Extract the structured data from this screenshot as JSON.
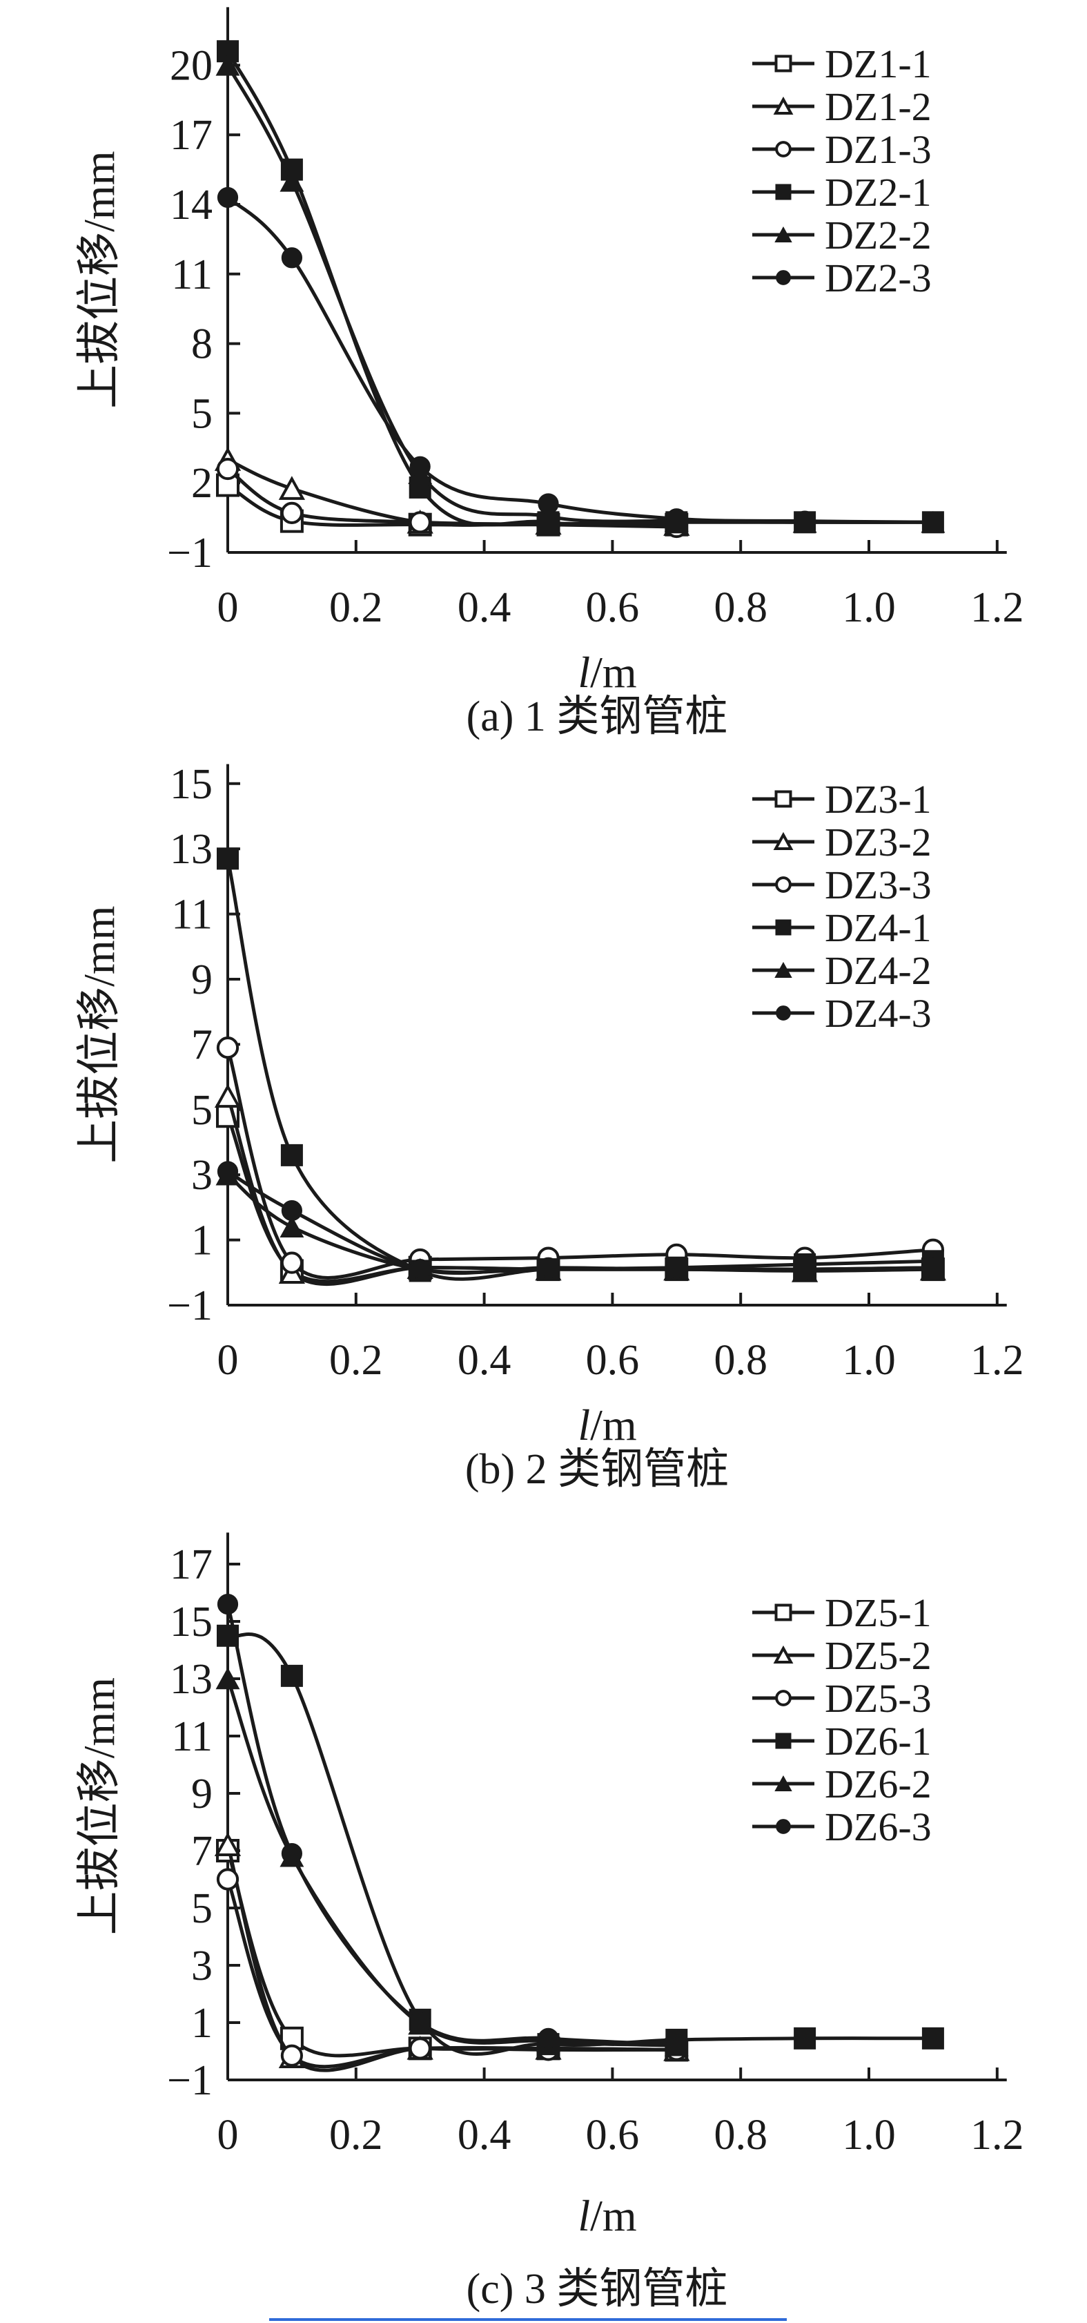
{
  "page": {
    "background": "#ffffff",
    "ink_color": "#1a1a1a",
    "accent_blue": "#2f6bd8"
  },
  "chart_data": [
    {
      "id": "a",
      "type": "line",
      "caption": "(a) 1 类钢管桩",
      "xlabel_italic": "l",
      "xlabel_rest": "/m",
      "ylabel": "上拔位移/mm",
      "xlim": [
        0,
        1.215
      ],
      "ylim": [
        -1,
        22.5
      ],
      "xticks": [
        0,
        0.2,
        0.4,
        0.6,
        0.8,
        1.0,
        1.2
      ],
      "xtick_labels": [
        "0",
        "0.2",
        "0.4",
        "0.6",
        "0.8",
        "1.0",
        "1.2"
      ],
      "yticks": [
        -1,
        2,
        5,
        8,
        11,
        14,
        17,
        20
      ],
      "ytick_labels": [
        "−1",
        "2",
        "5",
        "8",
        "11",
        "14",
        "17",
        "20"
      ],
      "grid": false,
      "legend_position": "upper-right",
      "series": [
        {
          "name": "DZ1-1",
          "marker": "square-open",
          "x": [
            0,
            0.1,
            0.3,
            0.5,
            0.7
          ],
          "y": [
            1.9,
            0.35,
            0.2,
            0.2,
            0.2
          ]
        },
        {
          "name": "DZ1-2",
          "marker": "triangle-open",
          "x": [
            0,
            0.1,
            0.3,
            0.5,
            0.7
          ],
          "y": [
            3.0,
            1.75,
            0.3,
            0.25,
            0.2
          ]
        },
        {
          "name": "DZ1-3",
          "marker": "circle-open",
          "x": [
            0,
            0.1,
            0.3,
            0.5,
            0.7
          ],
          "y": [
            2.6,
            0.7,
            0.3,
            0.2,
            0.1
          ]
        },
        {
          "name": "DZ2-1",
          "marker": "square-filled",
          "x": [
            0,
            0.1,
            0.3,
            0.5,
            0.7,
            0.9,
            1.1
          ],
          "y": [
            20.6,
            15.5,
            1.8,
            0.3,
            0.3,
            0.3,
            0.3
          ]
        },
        {
          "name": "DZ2-2",
          "marker": "triangle-filled",
          "x": [
            0,
            0.1,
            0.3,
            0.5,
            0.7,
            0.9,
            1.1
          ],
          "y": [
            20.0,
            15.0,
            2.4,
            0.55,
            0.35,
            0.3,
            0.3
          ]
        },
        {
          "name": "DZ2-3",
          "marker": "circle-filled",
          "x": [
            0,
            0.1,
            0.3,
            0.5,
            0.7,
            0.9,
            1.1
          ],
          "y": [
            14.3,
            11.7,
            2.7,
            1.1,
            0.45,
            0.35,
            0.3
          ]
        }
      ]
    },
    {
      "id": "b",
      "type": "line",
      "caption": "(b) 2 类钢管桩",
      "xlabel_italic": "l",
      "xlabel_rest": "/m",
      "ylabel": "上拔位移/mm",
      "xlim": [
        0,
        1.215
      ],
      "ylim": [
        -1,
        15.6
      ],
      "xticks": [
        0,
        0.2,
        0.4,
        0.6,
        0.8,
        1.0,
        1.2
      ],
      "xtick_labels": [
        "0",
        "0.2",
        "0.4",
        "0.6",
        "0.8",
        "1.0",
        "1.2"
      ],
      "yticks": [
        -1,
        1,
        3,
        5,
        7,
        9,
        11,
        13,
        15
      ],
      "ytick_labels": [
        "−1",
        "1",
        "3",
        "5",
        "7",
        "9",
        "11",
        "13",
        "15"
      ],
      "grid": false,
      "legend_position": "upper-right",
      "series": [
        {
          "name": "DZ3-1",
          "marker": "square-open",
          "x": [
            0,
            0.1,
            0.3,
            0.5,
            0.7,
            0.9,
            1.1
          ],
          "y": [
            4.8,
            0.05,
            0.15,
            0.1,
            0.1,
            0.1,
            0.1
          ]
        },
        {
          "name": "DZ3-2",
          "marker": "triangle-open",
          "x": [
            0,
            0.1,
            0.3,
            0.5,
            0.7,
            0.9,
            1.1
          ],
          "y": [
            5.4,
            0.0,
            0.15,
            0.1,
            0.1,
            0.05,
            0.1
          ]
        },
        {
          "name": "DZ3-3",
          "marker": "circle-open",
          "x": [
            0,
            0.1,
            0.3,
            0.5,
            0.7,
            0.9,
            1.1
          ],
          "y": [
            6.9,
            0.3,
            0.4,
            0.45,
            0.55,
            0.45,
            0.7
          ]
        },
        {
          "name": "DZ4-1",
          "marker": "square-filled",
          "x": [
            0,
            0.1,
            0.3,
            0.5,
            0.7,
            0.9,
            1.1
          ],
          "y": [
            12.7,
            3.6,
            0.05,
            0.1,
            0.15,
            0.25,
            0.35
          ]
        },
        {
          "name": "DZ4-2",
          "marker": "triangle-filled",
          "x": [
            0,
            0.1,
            0.3,
            0.5,
            0.7,
            0.9,
            1.1
          ],
          "y": [
            3.0,
            1.4,
            0.1,
            0.1,
            0.1,
            0.1,
            0.15
          ]
        },
        {
          "name": "DZ4-3",
          "marker": "circle-filled",
          "x": [
            0,
            0.1,
            0.3,
            0.5,
            0.7,
            0.9,
            1.1
          ],
          "y": [
            3.1,
            1.9,
            0.1,
            0.15,
            0.1,
            0.1,
            0.15
          ]
        }
      ]
    },
    {
      "id": "c",
      "type": "line",
      "caption": "(c) 3 类钢管桩",
      "xlabel_italic": "l",
      "xlabel_rest": "/m",
      "ylabel": "上拔位移/mm",
      "xlim": [
        0,
        1.215
      ],
      "ylim": [
        -1,
        18.1
      ],
      "xticks": [
        0,
        0.2,
        0.4,
        0.6,
        0.8,
        1.0,
        1.2
      ],
      "xtick_labels": [
        "0",
        "0.2",
        "0.4",
        "0.6",
        "0.8",
        "1.0",
        "1.2"
      ],
      "yticks": [
        -1,
        1,
        3,
        5,
        7,
        9,
        11,
        13,
        15,
        17
      ],
      "ytick_labels": [
        "−1",
        "1",
        "3",
        "5",
        "7",
        "9",
        "11",
        "13",
        "15",
        "17"
      ],
      "grid": false,
      "legend_position": "upper-right",
      "series": [
        {
          "name": "DZ5-1",
          "marker": "square-open",
          "x": [
            0,
            0.1,
            0.3,
            0.5,
            0.7
          ],
          "y": [
            7.0,
            0.45,
            0.1,
            0.1,
            0.05
          ]
        },
        {
          "name": "DZ5-2",
          "marker": "triangle-open",
          "x": [
            0,
            0.1,
            0.3,
            0.5,
            0.7
          ],
          "y": [
            7.2,
            -0.2,
            0.1,
            0.1,
            0.05
          ]
        },
        {
          "name": "DZ5-3",
          "marker": "circle-open",
          "x": [
            0,
            0.1,
            0.3,
            0.5,
            0.7
          ],
          "y": [
            6.0,
            -0.15,
            0.1,
            0.05,
            0.05
          ]
        },
        {
          "name": "DZ6-1",
          "marker": "square-filled",
          "x": [
            0,
            0.1,
            0.3,
            0.5,
            0.7,
            0.9,
            1.1
          ],
          "y": [
            14.5,
            13.1,
            1.1,
            0.25,
            0.4,
            0.45,
            0.45
          ]
        },
        {
          "name": "DZ6-2",
          "marker": "triangle-filled",
          "x": [
            0,
            0.1,
            0.3,
            0.5,
            0.7
          ],
          "y": [
            13.0,
            6.8,
            0.95,
            0.35,
            0.2
          ]
        },
        {
          "name": "DZ6-3",
          "marker": "circle-filled",
          "x": [
            0,
            0.1,
            0.3,
            0.5,
            0.7
          ],
          "y": [
            15.6,
            6.9,
            1.0,
            0.45,
            0.25
          ]
        }
      ]
    }
  ]
}
